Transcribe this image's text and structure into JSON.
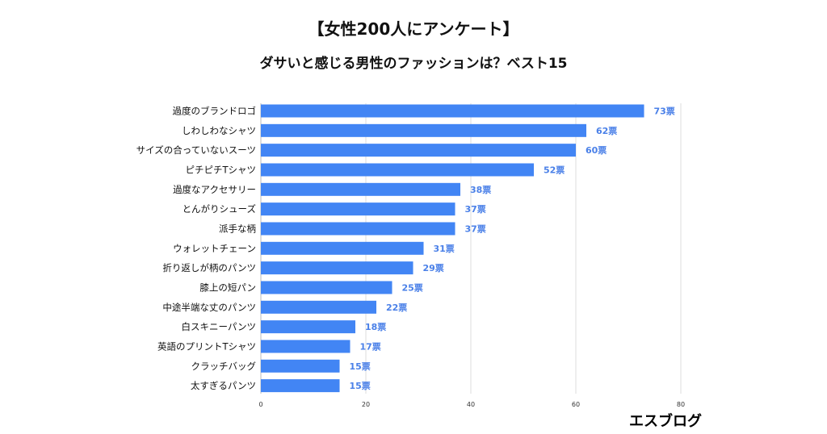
{
  "header": {
    "title": "【女性200人にアンケート】",
    "subtitle": "ダサいと感じる男性のファッションは？ベスト15"
  },
  "brand": "エスブログ",
  "colors": {
    "bar": "#4285f4",
    "value_label": "#4a80e8",
    "grid": "#dddddd",
    "text": "#111111"
  },
  "chart_data": {
    "type": "bar",
    "orientation": "horizontal",
    "categories": [
      "過度のブランドロゴ",
      "しわしわなシャツ",
      "サイズの合っていないスーツ",
      "ピチピチTシャツ",
      "過度なアクセサリー",
      "とんがりシューズ",
      "派手な柄",
      "ウォレットチェーン",
      "折り返しが柄のパンツ",
      "膝上の短パン",
      "中途半端な丈のパンツ",
      "白スキニーパンツ",
      "英語のプリントTシャツ",
      "クラッチバッグ",
      "太すぎるパンツ"
    ],
    "values": [
      73,
      62,
      60,
      52,
      38,
      37,
      37,
      31,
      29,
      25,
      22,
      18,
      17,
      15,
      15
    ],
    "value_labels": [
      "73票",
      "62票",
      "60票",
      "52票",
      "38票",
      "37票",
      "37票",
      "31票",
      "29票",
      "25票",
      "22票",
      "18票",
      "17票",
      "15票",
      "15票"
    ],
    "xlim": [
      0,
      80
    ],
    "xticks": [
      "0",
      "20",
      "40",
      "60",
      "80"
    ],
    "grid": true,
    "legend": "none"
  }
}
